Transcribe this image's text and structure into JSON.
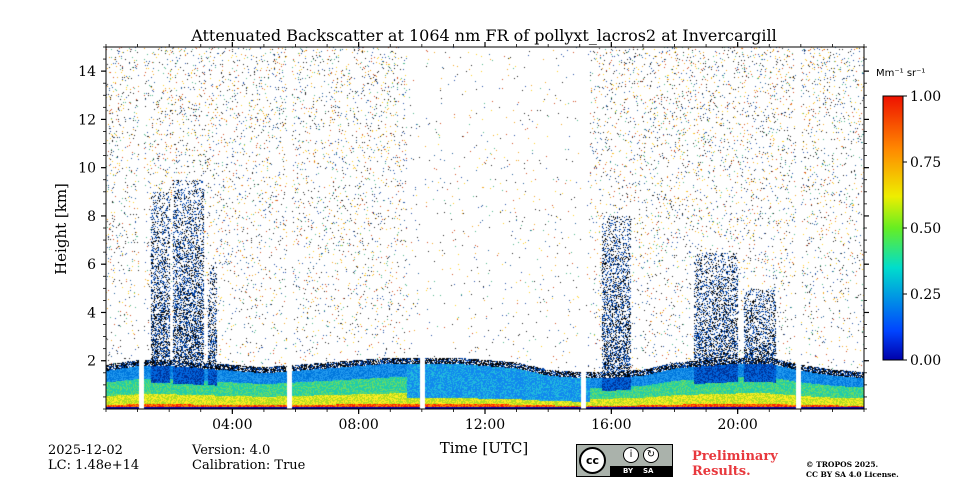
{
  "chart_data": {
    "type": "heatmap",
    "title": "Attenuated Backscatter at 1064 nm FR of pollyxt_lacros2 at Invercargill",
    "xlabel": "Time [UTC]",
    "ylabel": "Height [km]",
    "xlim": [
      0,
      24
    ],
    "ylim": [
      0,
      15
    ],
    "x_ticks": [
      4,
      8,
      12,
      16,
      20
    ],
    "x_tick_labels": [
      "04:00",
      "08:00",
      "12:00",
      "16:00",
      "20:00"
    ],
    "y_ticks": [
      2,
      4,
      6,
      8,
      10,
      12,
      14
    ],
    "y_tick_labels": [
      "2",
      "4",
      "6",
      "8",
      "10",
      "12",
      "14"
    ],
    "colorbar": {
      "unit": "Mm⁻¹ sr⁻¹",
      "range": [
        0.0,
        1.0
      ],
      "ticks": [
        0.0,
        0.25,
        0.5,
        0.75,
        1.0
      ],
      "tick_labels": [
        "0.00",
        "0.25",
        "0.50",
        "0.75",
        "1.00"
      ],
      "colormap": "jet"
    },
    "features": {
      "boundary_layer_top_km": [
        1.6,
        1.8,
        1.8,
        1.7,
        1.6,
        1.5,
        1.6,
        1.7,
        1.8,
        1.9,
        1.9,
        1.9,
        1.8,
        1.7,
        1.4,
        1.3,
        1.3,
        1.4,
        1.7,
        1.8,
        1.9,
        1.9,
        1.6,
        1.4,
        1.3
      ],
      "cloud_columns": [
        {
          "start_h": 1.4,
          "end_h": 2.0,
          "top_km": 9.0
        },
        {
          "start_h": 2.1,
          "end_h": 3.1,
          "top_km": 9.5
        },
        {
          "start_h": 3.2,
          "end_h": 3.5,
          "top_km": 6.0
        },
        {
          "start_h": 15.7,
          "end_h": 16.6,
          "top_km": 8.0
        },
        {
          "start_h": 18.6,
          "end_h": 20.0,
          "top_km": 6.5
        },
        {
          "start_h": 20.2,
          "end_h": 21.2,
          "top_km": 5.0
        }
      ],
      "data_gaps_h": [
        1.1,
        5.8,
        10.0,
        15.1,
        21.9
      ]
    }
  },
  "info": {
    "date": "2025-12-02",
    "lidar_constant": "LC: 1.48e+14",
    "version": "Version: 4.0",
    "calibration": "Calibration: True",
    "preliminary_line1": "Preliminary",
    "preliminary_line2": "Results.",
    "license_line1": "© TROPOS 2025.",
    "license_line2": "CC BY SA 4.0 License.",
    "cc_badge": {
      "cc": "cc",
      "by": "BY",
      "sa": "SA",
      "by_symbol": "i",
      "sa_symbol": "↻"
    }
  }
}
